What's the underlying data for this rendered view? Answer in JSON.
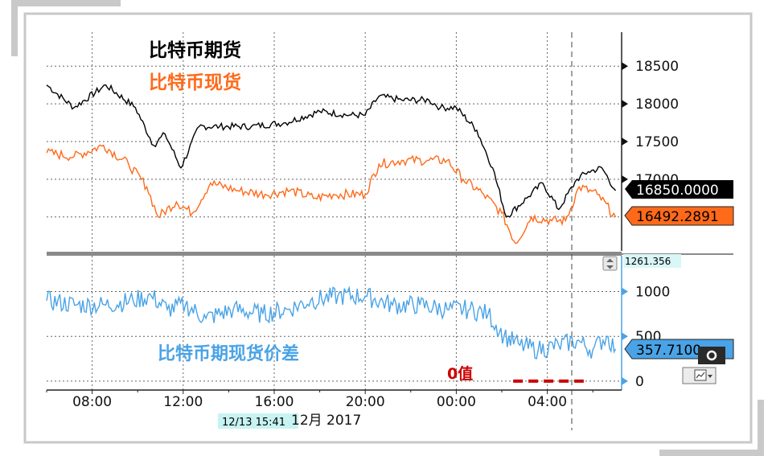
{
  "chart_data": [
    {
      "type": "line",
      "panel": "upper",
      "title": "",
      "annotations": [
        "比特币期货",
        "比特币现货"
      ],
      "yticks": [
        18500,
        18000,
        17500,
        17000
      ],
      "ylim": [
        16050,
        18950
      ],
      "x_ticks": [
        "08:00",
        "12:00",
        "16:00",
        "20:00",
        "00:00",
        "04:00"
      ],
      "series": [
        {
          "name": "比特币期货",
          "color": "#000000",
          "last_value_label": "16850.0000",
          "x_hours": [
            6.0,
            7.2,
            8.6,
            9.9,
            10.7,
            11.2,
            11.9,
            12.7,
            13.6,
            15.0,
            16.5,
            18.0,
            19.3,
            20.0,
            20.6,
            21.6,
            22.8,
            23.3,
            24.0,
            24.9,
            25.6,
            26.2,
            27.1,
            27.8,
            28.5,
            29.3,
            29.8,
            30.4,
            31.0
          ],
          "values": [
            18250,
            17950,
            18250,
            17950,
            17450,
            17600,
            17150,
            17700,
            17700,
            17700,
            17750,
            17900,
            17850,
            17850,
            18100,
            18050,
            18050,
            17950,
            17950,
            17650,
            17150,
            16500,
            16750,
            16950,
            16600,
            17000,
            17100,
            17150,
            16850
          ]
        },
        {
          "name": "比特币现货",
          "color": "#ff6a1a",
          "last_value_label": "16492.2891",
          "x_hours": [
            6.0,
            7.2,
            8.5,
            9.6,
            10.4,
            10.9,
            11.7,
            12.4,
            13.2,
            14.4,
            15.6,
            16.7,
            17.8,
            18.6,
            20.0,
            20.6,
            21.6,
            22.8,
            23.6,
            24.3,
            25.2,
            26.0,
            26.6,
            27.3,
            28.2,
            28.8,
            29.4,
            30.2,
            31.0
          ],
          "values": [
            17350,
            17300,
            17450,
            17200,
            16900,
            16500,
            16700,
            16550,
            16950,
            16850,
            16800,
            16850,
            16750,
            16800,
            16800,
            17200,
            17250,
            17250,
            17250,
            17000,
            16800,
            16550,
            16150,
            16500,
            16450,
            16450,
            16900,
            16800,
            16500
          ]
        }
      ]
    },
    {
      "type": "line",
      "panel": "lower",
      "title": "",
      "annotations": [
        "比特币期现货价差",
        "0值"
      ],
      "yticks": [
        1000,
        500,
        0
      ],
      "ylim": [
        -100,
        1400
      ],
      "x_ticks": [
        "08:00",
        "12:00",
        "16:00",
        "20:00",
        "00:00",
        "04:00"
      ],
      "series": [
        {
          "name": "比特币期现货价差",
          "color": "#4aa3e6",
          "last_value_label": "357.7100",
          "x_hours": [
            6.0,
            7.3,
            8.6,
            9.8,
            10.6,
            11.3,
            12.1,
            13.0,
            14.2,
            15.5,
            16.6,
            17.6,
            18.8,
            20.0,
            21.2,
            22.4,
            23.6,
            24.6,
            25.4,
            26.1,
            26.8,
            27.6,
            28.5,
            29.3,
            30.0,
            30.6,
            31.0
          ],
          "values": [
            900,
            850,
            850,
            900,
            950,
            800,
            850,
            700,
            800,
            750,
            800,
            900,
            950,
            950,
            850,
            850,
            800,
            800,
            750,
            500,
            400,
            350,
            400,
            450,
            350,
            500,
            360
          ]
        }
      ],
      "zero_line": {
        "value": 0,
        "color": "#cc0000",
        "x_start_hours": 26.5,
        "x_end_hours": 29.6
      }
    }
  ],
  "right_tags": {
    "upper_marker": "1261.356"
  },
  "x_axis_label": "12月 2017",
  "cursor_label": "12/13 15:41",
  "colors": {
    "futures": "#000000",
    "spot": "#ff6a1a",
    "spread": "#4aa3e6",
    "zero": "#cc0000",
    "spot_tag_bg": "#ff6a1a",
    "futures_tag_bg": "#000000",
    "spread_tag_bg": "#4aa3e6",
    "marker_tag_bg": "#d9f7f7"
  },
  "icons": [
    "scroll-toggle-icon",
    "gear-icon",
    "chart-settings-icon"
  ]
}
